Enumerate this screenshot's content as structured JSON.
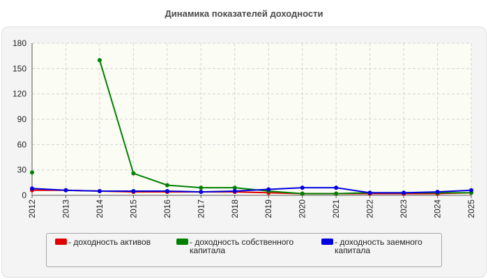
{
  "chart_data": {
    "type": "line",
    "title": "Динамика показателей доходности",
    "x": [
      "2012",
      "2013",
      "2014",
      "2015",
      "2016",
      "2017",
      "2018",
      "2019",
      "2020",
      "2021",
      "2022",
      "2023",
      "2024",
      "2025"
    ],
    "ylim": [
      0,
      180
    ],
    "yticks": [
      0,
      30,
      60,
      90,
      120,
      150,
      180
    ],
    "grid": true,
    "legend_position": "bottom",
    "series": [
      {
        "name": "- доходность активов",
        "color": "#e00000",
        "values": [
          6,
          6,
          5,
          4,
          4,
          4,
          4,
          3,
          2,
          2,
          2,
          2,
          2,
          3
        ]
      },
      {
        "name": "- доходность собственного капитала",
        "color": "#008000",
        "values": [
          27,
          null,
          160,
          26,
          12,
          9,
          9,
          5,
          2,
          2,
          3,
          3,
          3,
          3
        ]
      },
      {
        "name": "- доходность заемного капитала",
        "color": "#0000e0",
        "values": [
          8,
          6,
          5,
          5,
          5,
          4,
          5,
          7,
          9,
          9,
          3,
          3,
          4,
          6
        ]
      }
    ]
  }
}
